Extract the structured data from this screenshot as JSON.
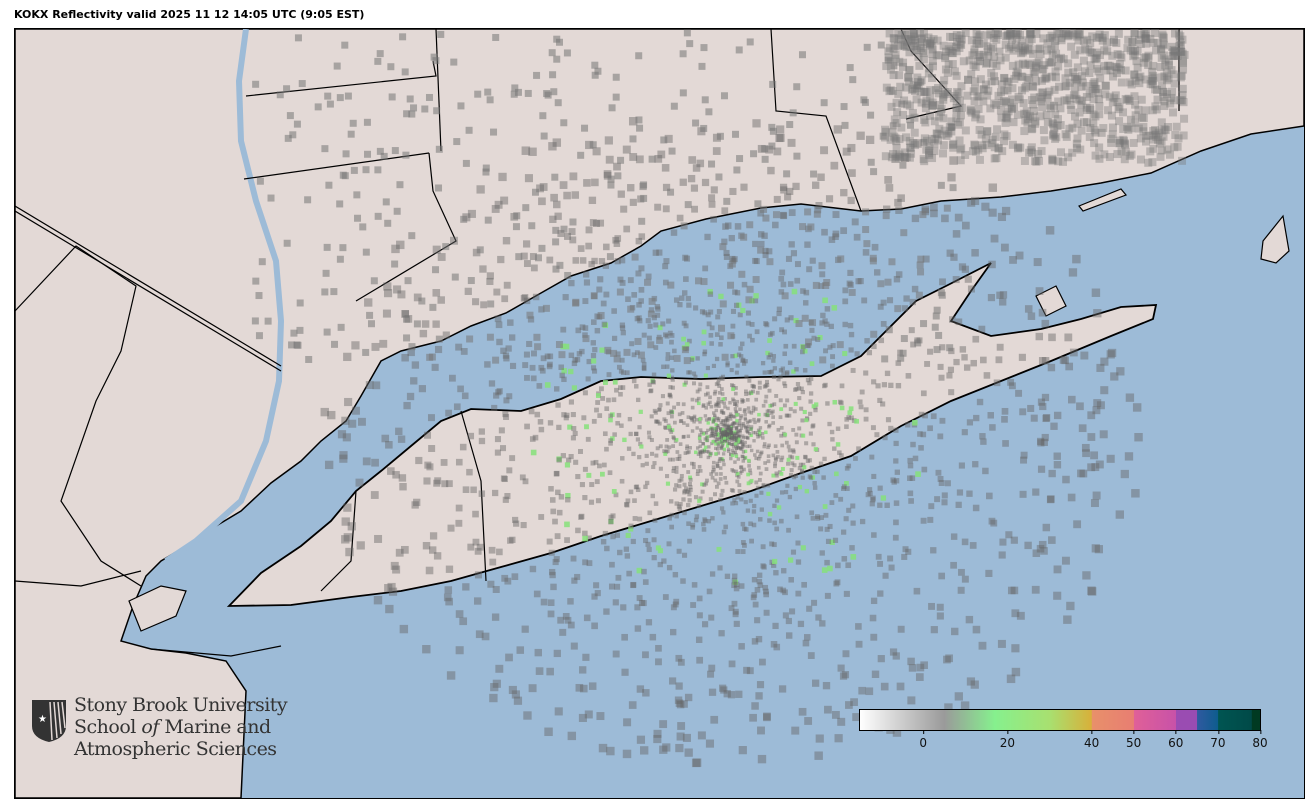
{
  "title": "KOKX Reflectivity valid 2025 11 12 14:05 UTC (9:05 EST)",
  "colors": {
    "water": "#9dbbd7",
    "land": "#e3d9d6",
    "border": "#000000"
  },
  "colorbar": {
    "min": -15,
    "max": 80,
    "ticks": [
      "0",
      "20",
      "40",
      "50",
      "60",
      "70",
      "80"
    ],
    "tick_values": [
      0,
      20,
      40,
      50,
      60,
      70,
      80
    ],
    "stops": [
      {
        "v": -15,
        "c": "#ffffff"
      },
      {
        "v": 5,
        "c": "#9a9a9a"
      },
      {
        "v": 17,
        "c": "#86f08e"
      },
      {
        "v": 30,
        "c": "#a8e070"
      },
      {
        "v": 40,
        "c": "#d8b03a"
      },
      {
        "v": 40.1,
        "c": "#e8906a"
      },
      {
        "v": 50,
        "c": "#e87e72"
      },
      {
        "v": 50.1,
        "c": "#e06098"
      },
      {
        "v": 60,
        "c": "#c852a8"
      },
      {
        "v": 60.1,
        "c": "#9a4cb2"
      },
      {
        "v": 65,
        "c": "#9a4cb2"
      },
      {
        "v": 65.1,
        "c": "#2f5aa0"
      },
      {
        "v": 70,
        "c": "#0e5c8e"
      },
      {
        "v": 70.1,
        "c": "#005552"
      },
      {
        "v": 78,
        "c": "#004a48"
      },
      {
        "v": 78.1,
        "c": "#003a22"
      },
      {
        "v": 80,
        "c": "#003a22"
      }
    ]
  },
  "logo": {
    "line1": "Stony Brook University",
    "line2a": "School ",
    "line2b": "of",
    "line2c": " Marine and",
    "line3": "Atmospheric Sciences"
  }
}
